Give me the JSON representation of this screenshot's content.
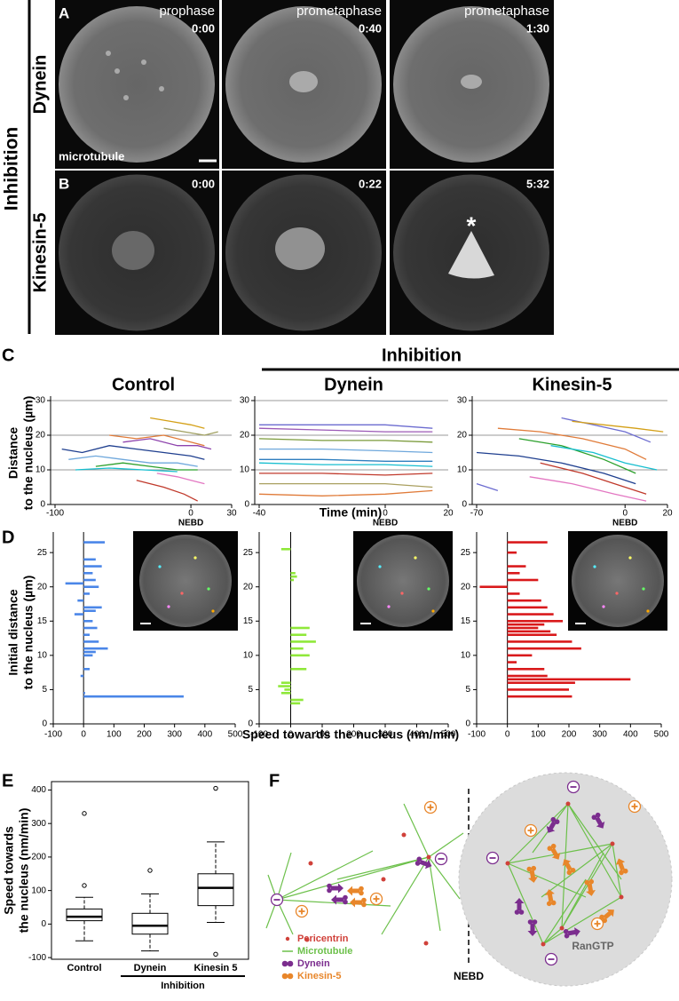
{
  "side_label": "Inhibition",
  "panel_a": {
    "letter": "A",
    "row_label": "Dynein",
    "frames": [
      {
        "phase": "prophase",
        "time": "0:00"
      },
      {
        "phase": "prometaphase",
        "time": "0:40"
      },
      {
        "phase": "prometaphase",
        "time": "1:30"
      }
    ],
    "channel": "microtubule"
  },
  "panel_b": {
    "letter": "B",
    "row_label": "Kinesin-5",
    "frames": [
      {
        "time": "0:00"
      },
      {
        "time": "0:22"
      },
      {
        "time": "5:32"
      }
    ],
    "marker": "*"
  },
  "panel_c": {
    "letter": "C",
    "group_label": "Inhibition",
    "xlabel": "Time (min)",
    "ylabel": [
      "Distance",
      "to the nucleus (µm)"
    ]
  },
  "panel_d": {
    "letter": "D",
    "xlabel": "Speed towards the nucleus (nm/min)",
    "ylabel": [
      "Initial distance",
      "to the nucleus (µm)"
    ]
  },
  "panel_e": {
    "letter": "E",
    "ylabel": [
      "Speed towards",
      "the nucleus (nm/min)"
    ]
  },
  "panel_f": {
    "letter": "F",
    "legend": [
      {
        "label": "Pericentrin",
        "color": "#d0413a"
      },
      {
        "label": "Microtubule",
        "color": "#6cc04a"
      },
      {
        "label": "Dynein",
        "color": "#7b2d8e"
      },
      {
        "label": "Kinesin-5",
        "color": "#e8862a"
      }
    ],
    "divider_label": "NEBD",
    "region_label": "RanGTP"
  },
  "chart_data": [
    {
      "type": "line",
      "title": "Control",
      "xlim": [
        -100,
        30
      ],
      "xticks": [
        -100,
        0,
        30
      ],
      "zero_label": "NEBD",
      "ylim": [
        0,
        30
      ],
      "yticks": [
        0,
        10,
        20,
        30
      ],
      "grid": true,
      "series": [
        {
          "color": "#1f3f8f",
          "x": [
            -95,
            -80,
            -60,
            -40,
            -20,
            0,
            10
          ],
          "values": [
            16,
            15,
            17,
            16,
            15,
            14,
            13
          ]
        },
        {
          "color": "#e07b39",
          "x": [
            -60,
            -40,
            -20,
            0,
            10
          ],
          "values": [
            20,
            19,
            20,
            18,
            17
          ]
        },
        {
          "color": "#2ca02c",
          "x": [
            -70,
            -50,
            -30,
            -10,
            5
          ],
          "values": [
            11,
            12,
            11,
            10,
            10
          ]
        },
        {
          "color": "#c0392b",
          "x": [
            -40,
            -20,
            -5,
            5
          ],
          "values": [
            7,
            5,
            3,
            1
          ]
        },
        {
          "color": "#6fa8dc",
          "x": [
            -90,
            -70,
            -50,
            -30,
            -10,
            5
          ],
          "values": [
            13,
            14,
            13,
            12,
            12,
            11
          ]
        },
        {
          "color": "#d4a017",
          "x": [
            -30,
            -15,
            0,
            10
          ],
          "values": [
            25,
            24,
            23,
            22
          ]
        },
        {
          "color": "#8e44ad",
          "x": [
            -50,
            -30,
            -10,
            5,
            15
          ],
          "values": [
            18,
            19,
            17,
            17,
            16
          ]
        },
        {
          "color": "#e377c2",
          "x": [
            -25,
            -10,
            0,
            10
          ],
          "values": [
            9,
            8,
            7,
            6
          ]
        },
        {
          "color": "#17becf",
          "x": [
            -85,
            -60,
            -35,
            -10
          ],
          "values": [
            10,
            10.5,
            10,
            9.5
          ]
        },
        {
          "color": "#a0a060",
          "x": [
            -20,
            -5,
            10,
            20
          ],
          "values": [
            22,
            21,
            20,
            21
          ]
        }
      ]
    },
    {
      "type": "line",
      "title": "Dynein",
      "xlim": [
        -40,
        20
      ],
      "xticks": [
        -40,
        0,
        20
      ],
      "zero_label": "NEBD",
      "ylim": [
        0,
        30
      ],
      "yticks": [
        0,
        10,
        20,
        30
      ],
      "grid": true,
      "series": [
        {
          "color": "#6c6cd0",
          "x": [
            -40,
            -20,
            0,
            15
          ],
          "values": [
            23,
            23,
            23,
            22
          ]
        },
        {
          "color": "#9b59b6",
          "x": [
            -40,
            -20,
            0,
            15
          ],
          "values": [
            22,
            21.5,
            21,
            21
          ]
        },
        {
          "color": "#7a9a3a",
          "x": [
            -40,
            -20,
            0,
            15
          ],
          "values": [
            19,
            18.5,
            18.5,
            18
          ]
        },
        {
          "color": "#6fa8dc",
          "x": [
            -40,
            -20,
            0,
            15
          ],
          "values": [
            16,
            16,
            15.5,
            15
          ]
        },
        {
          "color": "#2f7fbf",
          "x": [
            -40,
            -20,
            0,
            15
          ],
          "values": [
            13,
            13,
            12.5,
            12.5
          ]
        },
        {
          "color": "#17becf",
          "x": [
            -40,
            -20,
            0,
            15
          ],
          "values": [
            12,
            11.5,
            11.5,
            11
          ]
        },
        {
          "color": "#c0392b",
          "x": [
            -40,
            -20,
            0,
            15
          ],
          "values": [
            9,
            9,
            8.5,
            9
          ]
        },
        {
          "color": "#aaa060",
          "x": [
            -40,
            -20,
            0,
            15
          ],
          "values": [
            6,
            6,
            6,
            5
          ]
        },
        {
          "color": "#e07b39",
          "x": [
            -40,
            -20,
            0,
            15
          ],
          "values": [
            3,
            2.5,
            3,
            4
          ]
        }
      ]
    },
    {
      "type": "line",
      "title": "Kinesin-5",
      "xlim": [
        -70,
        20
      ],
      "xticks": [
        -70,
        0,
        20
      ],
      "zero_label": "NEBD",
      "ylim": [
        0,
        30
      ],
      "yticks": [
        0,
        10,
        20,
        30
      ],
      "grid": true,
      "series": [
        {
          "color": "#1f3f8f",
          "x": [
            -70,
            -50,
            -30,
            -10,
            5
          ],
          "values": [
            15,
            14,
            12,
            9,
            6
          ]
        },
        {
          "color": "#e07b39",
          "x": [
            -60,
            -40,
            -20,
            0,
            10
          ],
          "values": [
            22,
            21,
            19,
            16,
            13
          ]
        },
        {
          "color": "#2ca02c",
          "x": [
            -50,
            -30,
            -10,
            5
          ],
          "values": [
            19,
            17,
            13,
            9
          ]
        },
        {
          "color": "#c0392b",
          "x": [
            -40,
            -20,
            -5,
            10
          ],
          "values": [
            12,
            9,
            6,
            3
          ]
        },
        {
          "color": "#6c6cd0",
          "x": [
            -30,
            -15,
            0,
            12
          ],
          "values": [
            25,
            23,
            21,
            18
          ]
        },
        {
          "color": "#6c6cd0",
          "x": [
            -70,
            -60
          ],
          "values": [
            6,
            4
          ]
        },
        {
          "color": "#e377c2",
          "x": [
            -45,
            -25,
            -5,
            10
          ],
          "values": [
            8,
            6,
            3,
            1
          ]
        },
        {
          "color": "#17becf",
          "x": [
            -35,
            -15,
            0,
            15
          ],
          "values": [
            17,
            15,
            12,
            10
          ]
        },
        {
          "color": "#d4a017",
          "x": [
            -25,
            -10,
            5,
            18
          ],
          "values": [
            24,
            23,
            22,
            21
          ]
        }
      ]
    },
    {
      "type": "hbar",
      "color": "#4a86e8",
      "xlim": [
        -100,
        500
      ],
      "xticks": [
        -100,
        0,
        100,
        200,
        300,
        400,
        500
      ],
      "ylim": [
        0,
        28
      ],
      "yticks": [
        0,
        5,
        10,
        15,
        20,
        25
      ],
      "positions": [
        26.5,
        24,
        23,
        22,
        21,
        20.5,
        20,
        19,
        18,
        17,
        16.5,
        16,
        15,
        14,
        13,
        12,
        11,
        10.5,
        10,
        8,
        7,
        4.5,
        4
      ],
      "values": [
        70,
        40,
        60,
        30,
        40,
        -60,
        50,
        20,
        -20,
        60,
        40,
        -30,
        30,
        45,
        20,
        50,
        80,
        40,
        30,
        20,
        -10,
        5,
        330
      ]
    },
    {
      "type": "hbar",
      "color": "#8fe83a",
      "xlim": [
        -100,
        500
      ],
      "xticks": [
        -100,
        0,
        100,
        200,
        300,
        400,
        500
      ],
      "ylim": [
        0,
        28
      ],
      "yticks": [
        0,
        5,
        10,
        15,
        20,
        25
      ],
      "positions": [
        25.5,
        22,
        21.5,
        21,
        14,
        13,
        12,
        11,
        10,
        8,
        6,
        5.5,
        5,
        4.5,
        3.5,
        3
      ],
      "values": [
        -30,
        15,
        20,
        10,
        60,
        50,
        80,
        40,
        60,
        50,
        -30,
        -40,
        -20,
        -30,
        40,
        30
      ]
    },
    {
      "type": "hbar",
      "color": "#d9191b",
      "xlim": [
        -100,
        500
      ],
      "xticks": [
        -100,
        0,
        100,
        200,
        300,
        400,
        500
      ],
      "ylim": [
        0,
        28
      ],
      "yticks": [
        0,
        5,
        10,
        15,
        20,
        25
      ],
      "positions": [
        26.5,
        25,
        23,
        22,
        21,
        20,
        19,
        18,
        17,
        16,
        15,
        14.5,
        14,
        13.5,
        13,
        12,
        11,
        10,
        9,
        8,
        7,
        6.5,
        6,
        5,
        4
      ],
      "values": [
        130,
        30,
        60,
        40,
        100,
        -90,
        40,
        110,
        130,
        150,
        180,
        120,
        100,
        140,
        160,
        210,
        240,
        80,
        30,
        120,
        130,
        400,
        220,
        200,
        210
      ]
    },
    {
      "type": "box",
      "categories": [
        "Control",
        "Dynein",
        "Kinesin 5"
      ],
      "group_label": "Inhibition",
      "ylim": [
        -105,
        425
      ],
      "yticks": [
        -100,
        0,
        100,
        200,
        300,
        400
      ],
      "boxes": [
        {
          "whisker_low": -50,
          "q1": 10,
          "median": 22,
          "q3": 45,
          "whisker_high": 80,
          "outliers": [
            115,
            330
          ]
        },
        {
          "whisker_low": -80,
          "q1": -30,
          "median": -5,
          "q3": 32,
          "whisker_high": 90,
          "outliers": [
            160
          ]
        },
        {
          "whisker_low": 5,
          "q1": 55,
          "median": 108,
          "q3": 150,
          "whisker_high": 245,
          "outliers": [
            405,
            -90
          ]
        }
      ]
    }
  ]
}
